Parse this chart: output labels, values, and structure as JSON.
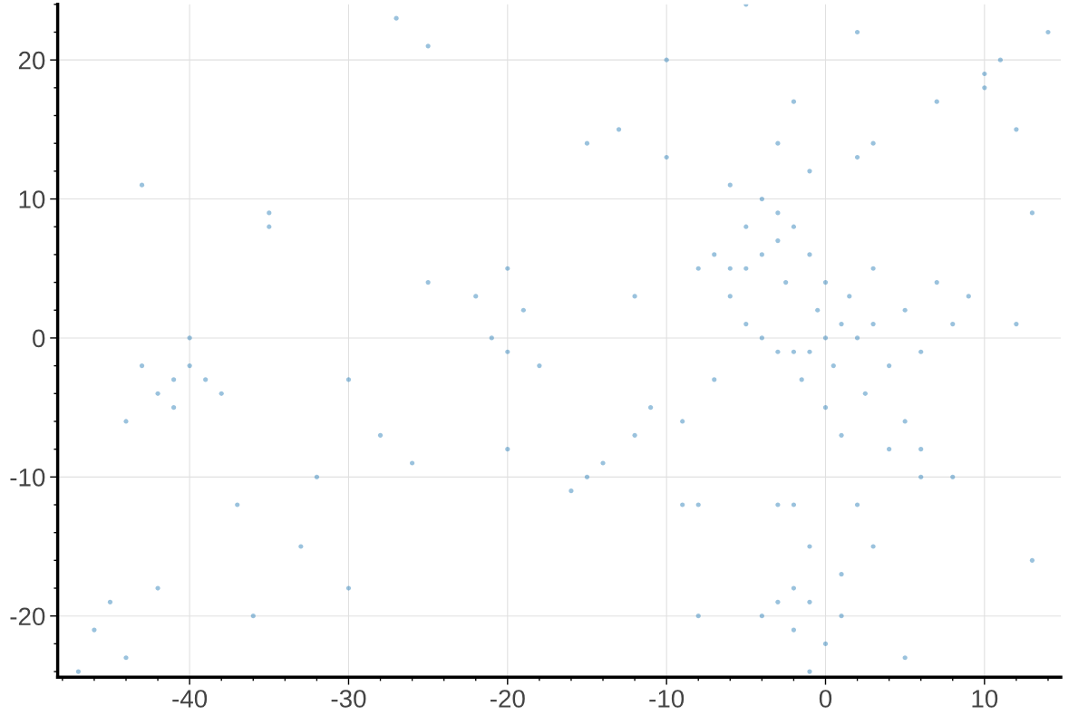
{
  "chart_data": {
    "type": "scatter",
    "xlim": [
      -48.3,
      14.8
    ],
    "ylim": [
      -24.4,
      24
    ],
    "xticks": [
      -40,
      -30,
      -20,
      -10,
      0,
      10
    ],
    "yticks": [
      -20,
      -10,
      0,
      10,
      20
    ],
    "grid": true,
    "marker": "circle",
    "series": [
      {
        "color": "#1f77b4",
        "x": [
          0,
          1,
          -1,
          0.5,
          -0.5,
          2,
          -2,
          1.5,
          -1.5,
          3,
          -3,
          0,
          0,
          2.5,
          -2.5,
          4,
          -4,
          1,
          -1,
          3,
          5,
          -5,
          6,
          -6,
          7,
          8,
          -7,
          -8,
          5,
          6,
          -4,
          -3,
          -5,
          -6,
          -7,
          -2,
          -3,
          -4,
          -5,
          -6,
          -1,
          2,
          4,
          6,
          8,
          9,
          -9,
          -8,
          3,
          1,
          -1,
          -2,
          -3,
          -2,
          -1,
          0,
          1,
          2,
          3,
          -3,
          -2,
          -4,
          -3,
          -2,
          10,
          11,
          10,
          -41,
          -40,
          -42,
          -39,
          -41,
          -43,
          -38,
          -44,
          -40,
          -37,
          -21,
          -20,
          -19,
          -22,
          -20,
          -18,
          -15,
          -16,
          -14,
          -25,
          -30,
          -33,
          -35,
          -28,
          -26,
          -45,
          -46,
          -44,
          -42,
          -36,
          -32,
          -12,
          -11,
          -10,
          -12,
          -13,
          -9,
          12,
          13,
          14,
          12,
          13,
          -8,
          -5,
          2,
          5,
          -15,
          -25,
          -35,
          -43,
          -47,
          -30,
          -20,
          -10,
          7,
          -1,
          -27
        ],
        "values": [
          0,
          1,
          -1,
          -2,
          2,
          0,
          -1,
          3,
          -3,
          1,
          -1,
          -5,
          4,
          -4,
          4,
          -2,
          0,
          -7,
          6,
          5,
          2,
          1,
          -1,
          3,
          4,
          1,
          -3,
          5,
          -6,
          -8,
          6,
          7,
          5,
          5,
          6,
          8,
          9,
          10,
          8,
          11,
          12,
          13,
          -8,
          -10,
          -10,
          3,
          -6,
          -12,
          -15,
          -17,
          -15,
          -12,
          -12,
          -18,
          -19,
          -22,
          -20,
          -12,
          14,
          14,
          17,
          -20,
          -19,
          -21,
          19,
          20,
          18,
          -3,
          -2,
          -4,
          -3,
          -5,
          -2,
          -4,
          -6,
          0,
          -12,
          0,
          -1,
          2,
          3,
          5,
          -2,
          -10,
          -11,
          -9,
          4,
          -3,
          -15,
          9,
          -7,
          -9,
          -19,
          -21,
          -23,
          -18,
          -20,
          -10,
          3,
          -5,
          13,
          -7,
          15,
          -12,
          15,
          -16,
          22,
          1,
          9,
          -20,
          24,
          22,
          -23,
          14,
          21,
          8,
          11,
          -24,
          -18,
          -8,
          20,
          17,
          -24,
          23
        ]
      }
    ]
  }
}
